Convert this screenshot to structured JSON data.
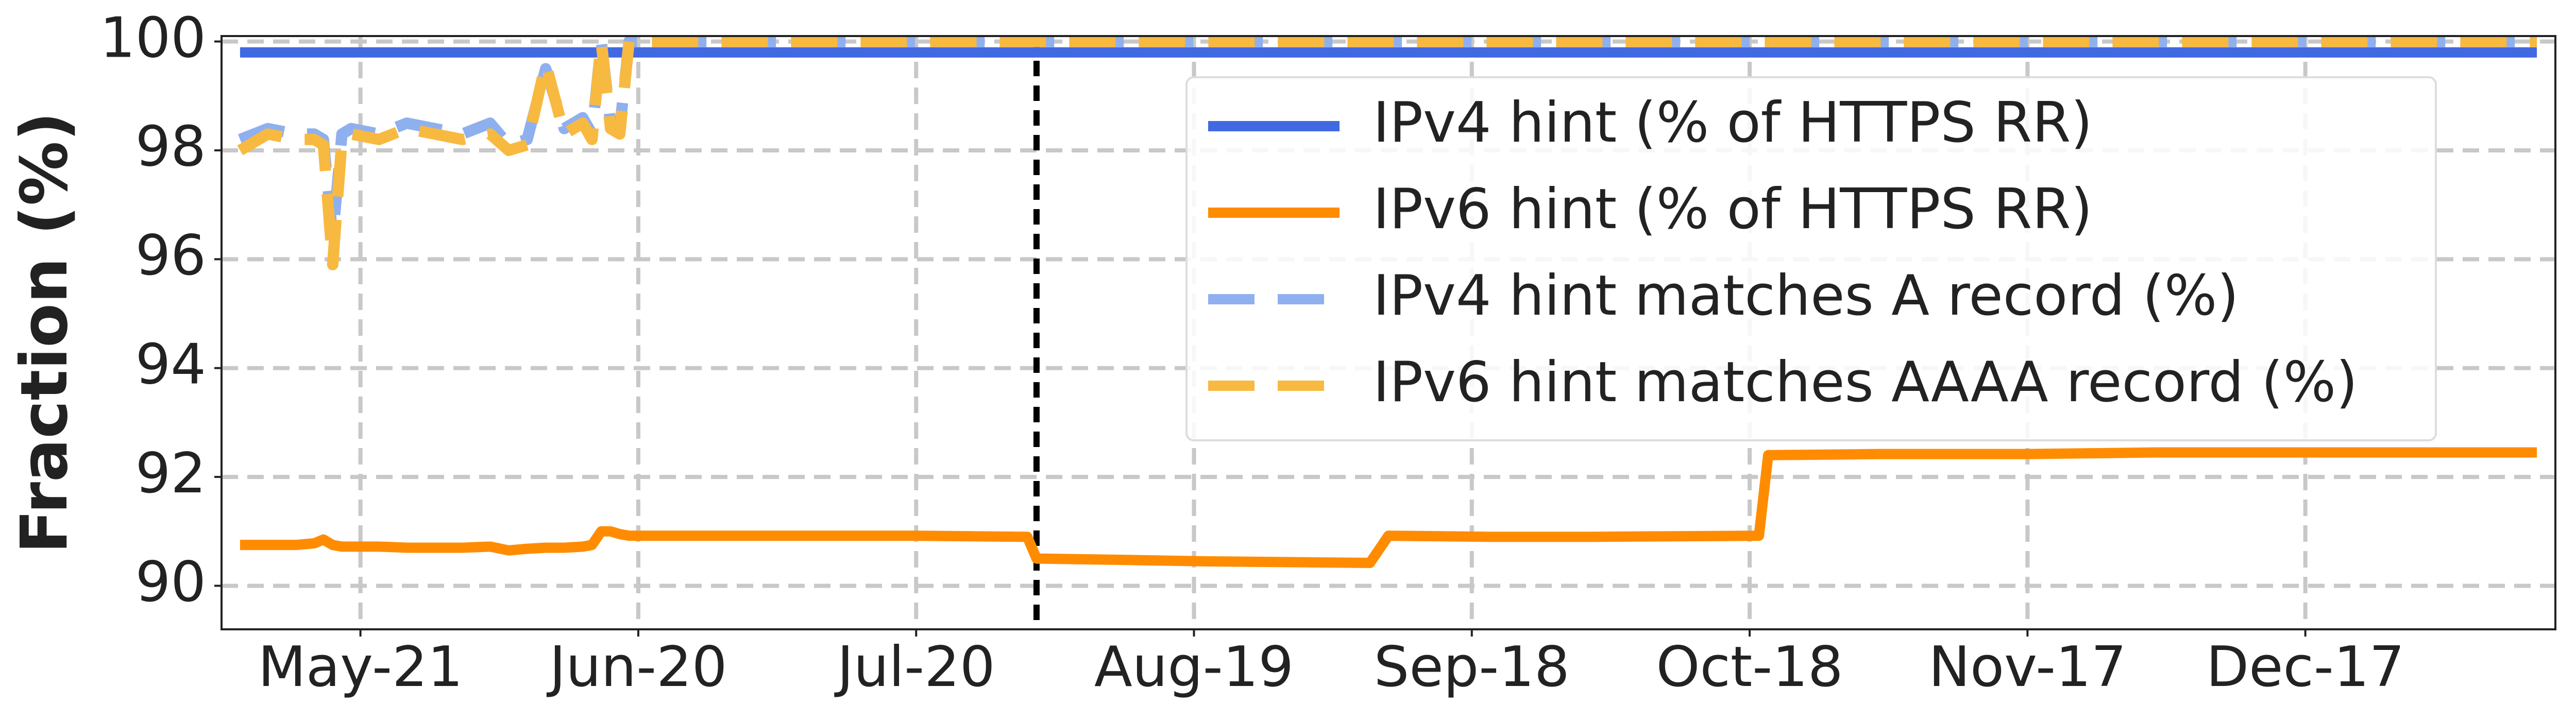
{
  "chart_data": {
    "type": "line",
    "ylabel": "Fraction (%)",
    "x": [
      "May-08",
      "May-11",
      "May-14",
      "May-16",
      "May-17",
      "May-18",
      "May-19",
      "May-20",
      "May-23",
      "May-26",
      "May-29",
      "Jun-01",
      "Jun-04",
      "Jun-06",
      "Jun-08",
      "Jun-10",
      "Jun-12",
      "Jun-14",
      "Jun-15",
      "Jun-16",
      "Jun-17",
      "Jun-18",
      "Jun-19",
      "Jun-25",
      "Jul-05",
      "Jul-20",
      "Aug-01",
      "Aug-02",
      "Aug-10",
      "Aug-20",
      "Sep-01",
      "Sep-07",
      "Sep-09",
      "Sep-20",
      "Oct-01",
      "Oct-19",
      "Oct-20",
      "Nov-01",
      "Nov-17",
      "Dec-01",
      "Dec-17",
      "Jan-01",
      "Jan-11"
    ],
    "series": [
      {
        "name": "IPv4 hint (% of HTTPS RR)",
        "color": "#4169e1",
        "dashed": false,
        "values": [
          99.8,
          99.8,
          99.8,
          99.8,
          99.8,
          99.8,
          99.8,
          99.8,
          99.8,
          99.8,
          99.8,
          99.8,
          99.8,
          99.8,
          99.8,
          99.8,
          99.8,
          99.8,
          99.8,
          99.8,
          99.8,
          99.8,
          99.8,
          99.8,
          99.8,
          99.8,
          99.8,
          99.8,
          99.8,
          99.8,
          99.8,
          99.8,
          99.8,
          99.8,
          99.8,
          99.8,
          99.8,
          99.8,
          99.8,
          99.8,
          99.8,
          99.8,
          99.8
        ]
      },
      {
        "name": "IPv6 hint (% of HTTPS RR)",
        "color": "#ff8c00",
        "dashed": false,
        "values": [
          90.75,
          90.75,
          90.75,
          90.78,
          90.85,
          90.75,
          90.72,
          90.72,
          90.72,
          90.7,
          90.7,
          90.7,
          90.72,
          90.65,
          90.68,
          90.7,
          90.7,
          90.72,
          90.75,
          91.0,
          91.0,
          90.95,
          90.92,
          90.92,
          90.92,
          90.92,
          90.9,
          90.5,
          90.48,
          90.45,
          90.43,
          90.42,
          90.92,
          90.9,
          90.9,
          90.92,
          92.4,
          92.42,
          92.42,
          92.45,
          92.45,
          92.45,
          92.45
        ]
      },
      {
        "name": "IPv4 hint matches A record (%)",
        "color": "#8fb0ef",
        "dashed": true,
        "values": [
          98.2,
          98.4,
          98.3,
          98.3,
          98.2,
          96.4,
          98.3,
          98.4,
          98.3,
          98.5,
          98.4,
          98.3,
          98.5,
          98.1,
          98.2,
          99.5,
          98.4,
          98.6,
          98.3,
          100,
          98.5,
          98.4,
          100,
          100,
          100,
          100,
          100,
          100,
          100,
          100,
          100,
          100,
          100,
          100,
          100,
          100,
          100,
          100,
          100,
          100,
          100,
          100,
          100
        ]
      },
      {
        "name": "IPv6 hint matches AAAA record (%)",
        "color": "#f8b940",
        "dashed": true,
        "values": [
          98.0,
          98.3,
          98.2,
          98.2,
          98.1,
          95.9,
          98.2,
          98.3,
          98.2,
          98.4,
          98.3,
          98.2,
          98.3,
          98.0,
          98.1,
          99.6,
          98.3,
          98.5,
          98.2,
          100,
          98.4,
          98.3,
          100,
          100,
          100,
          100,
          100,
          100,
          100,
          100,
          100,
          100,
          100,
          100,
          100,
          100,
          100,
          100,
          100,
          100,
          100,
          100,
          100
        ]
      }
    ],
    "xlim": [
      "May-06",
      "Jan-13"
    ],
    "xticks": [
      "May-21",
      "Jun-20",
      "Jul-20",
      "Aug-19",
      "Sep-18",
      "Oct-18",
      "Nov-17",
      "Dec-17"
    ],
    "ylim": [
      89.2,
      100.1
    ],
    "yticks": [
      90,
      92,
      94,
      96,
      98,
      100
    ],
    "vline": "Aug-02",
    "grid": true,
    "legend": "upper right"
  }
}
